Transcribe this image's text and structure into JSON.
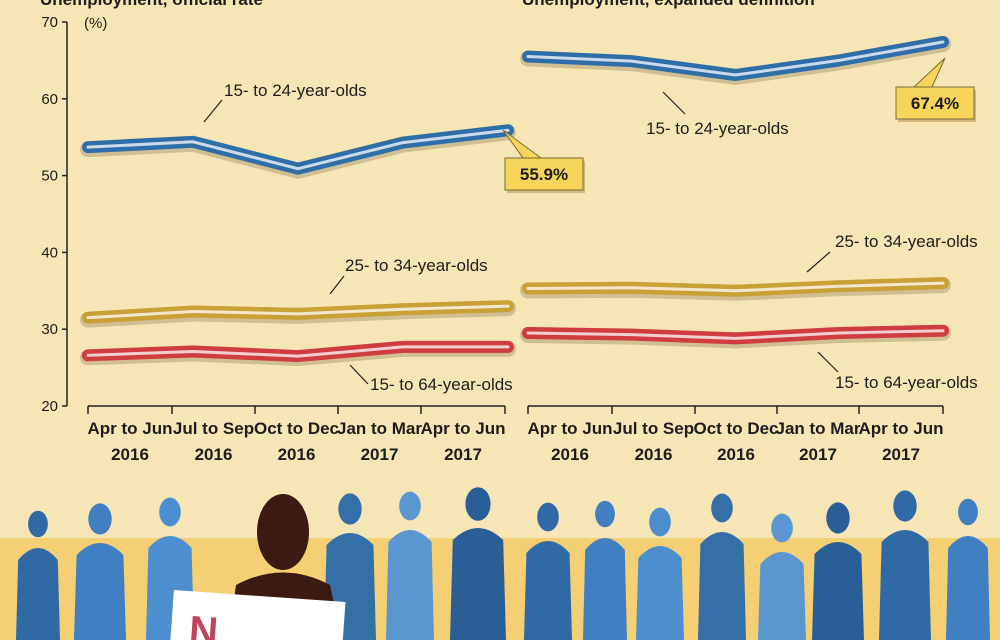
{
  "colors": {
    "background": "#f7e6b5",
    "youth": "#2e6ea8",
    "young_adult": "#c9a035",
    "all_ages": "#cf3d41",
    "callout": "#f7d45a",
    "silhouette_blue": "#3f79b8",
    "silhouette_dark": "#3a1a12"
  },
  "chart_data": [
    {
      "type": "line",
      "title": "Unemployment, official rate",
      "ylabel": "(%)",
      "ylim": [
        20,
        70
      ],
      "yticks": [
        "70",
        "60",
        "50",
        "40",
        "30",
        "20"
      ],
      "categories": [
        [
          "Apr to Jun",
          "2016"
        ],
        [
          "Jul to Sep",
          "2016"
        ],
        [
          "Oct to Dec",
          "2016"
        ],
        [
          "Jan to Mar",
          "2017"
        ],
        [
          "Apr to Jun",
          "2017"
        ]
      ],
      "series": [
        {
          "name": "15- to 24-year-olds",
          "values": [
            53.7,
            54.4,
            50.9,
            54.3,
            55.9
          ],
          "color": "#2e6ea8"
        },
        {
          "name": "25- to 34-year-olds",
          "values": [
            31.5,
            32.3,
            32.0,
            32.6,
            33.0
          ],
          "color": "#c9a035"
        },
        {
          "name": "15- to 64-year-olds",
          "values": [
            26.6,
            27.1,
            26.5,
            27.7,
            27.7
          ],
          "color": "#cf3d41"
        }
      ],
      "callout": "55.9%"
    },
    {
      "type": "line",
      "title": "Unemployment, expanded definition",
      "ylim": [
        20,
        70
      ],
      "categories": [
        [
          "Apr to Jun",
          "2016"
        ],
        [
          "Jul to Sep",
          "2016"
        ],
        [
          "Oct to Dec",
          "2016"
        ],
        [
          "Jan to Mar",
          "2017"
        ],
        [
          "Apr to Jun",
          "2017"
        ]
      ],
      "series": [
        {
          "name": "15- to 24-year-olds",
          "values": [
            65.5,
            64.9,
            63.1,
            65.0,
            67.4
          ],
          "color": "#2e6ea8"
        },
        {
          "name": "25- to 34-year-olds",
          "values": [
            35.3,
            35.4,
            35.0,
            35.6,
            36.0
          ],
          "color": "#c9a035"
        },
        {
          "name": "15- to 64-year-olds",
          "values": [
            29.5,
            29.3,
            28.8,
            29.5,
            29.8
          ],
          "color": "#cf3d41"
        }
      ],
      "callout": "67.4%"
    }
  ],
  "sign_text": "N"
}
